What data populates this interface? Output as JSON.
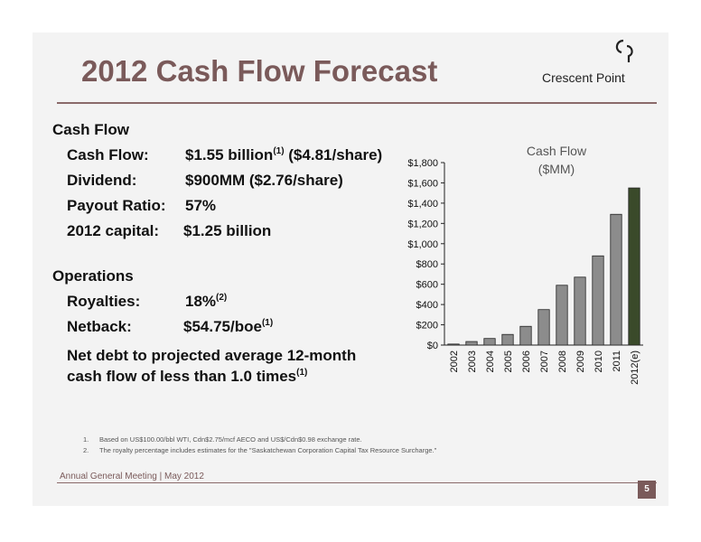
{
  "slide": {
    "title": "2012 Cash Flow Forecast",
    "logo_text": "Crescent Point",
    "footer": "Annual General Meeting | May 2012",
    "page_number": "5"
  },
  "cash_flow_section": {
    "heading": "Cash Flow",
    "rows": [
      {
        "label": "Cash Flow:",
        "value": "$1.55 billion",
        "sup": "(1)",
        "value_after": " ($4.81/share)"
      },
      {
        "label": "Dividend:",
        "value": "$900MM ($2.76/share)"
      },
      {
        "label": "Payout Ratio:",
        "value": "57%"
      },
      {
        "label": "2012 capital:",
        "value": "$1.25 billion"
      }
    ]
  },
  "operations_section": {
    "heading": "Operations",
    "rows": [
      {
        "label": "Royalties:",
        "value": "18%",
        "sup": "(2)"
      },
      {
        "label": "Netback:",
        "value": "$54.75/boe",
        "sup": "(1)"
      }
    ],
    "debt_line1": "Net debt to projected average 12-month",
    "debt_line2": "cash flow of less than 1.0 times",
    "debt_sup": "(1)"
  },
  "footnotes": [
    {
      "num": "1.",
      "text": "Based on US$100.00/bbl WTI, Cdn$2.75/mcf AECO and US$/Cdn$0.98 exchange rate."
    },
    {
      "num": "2.",
      "text": "The royalty percentage includes estimates for the \"Saskatchewan Corporation Capital Tax Resource Surcharge.\""
    }
  ],
  "chart_data": {
    "type": "bar",
    "title": "Cash Flow",
    "subtitle": "($MM)",
    "categories": [
      "2002",
      "2003",
      "2004",
      "2005",
      "2006",
      "2007",
      "2008",
      "2009",
      "2010",
      "2011",
      "2012(e)"
    ],
    "values": [
      10,
      35,
      65,
      105,
      185,
      350,
      590,
      670,
      880,
      1290,
      1550
    ],
    "ylim": [
      0,
      1800
    ],
    "yticks": [
      0,
      200,
      400,
      600,
      800,
      1000,
      1200,
      1400,
      1600,
      1800
    ],
    "ytick_labels": [
      "$0",
      "$200",
      "$400",
      "$600",
      "$800",
      "$1,000",
      "$1,200",
      "$1,400",
      "$1,600",
      "$1,800"
    ],
    "grid": false,
    "colors": {
      "bar": "#8c8c8c",
      "bar_highlight": "#3a4a2a",
      "stroke": "#222222"
    }
  }
}
